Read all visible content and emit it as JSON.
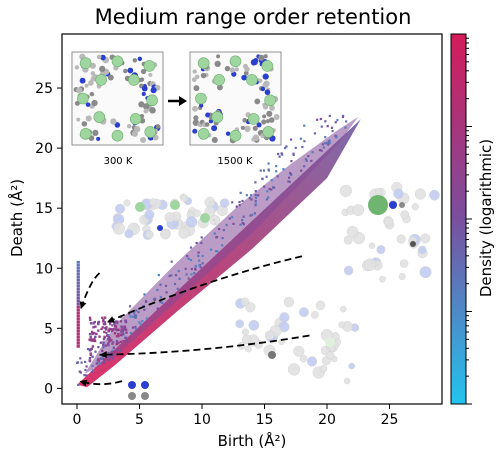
{
  "chart_data": {
    "type": "scatter",
    "title": "Medium range order retention",
    "xlabel": "Birth (Å²)",
    "ylabel": "Death (Å²)",
    "xlim": [
      -1.2,
      29.2
    ],
    "ylim": [
      -1.3,
      29.5
    ],
    "xticks": [
      0,
      5,
      10,
      15,
      20,
      25
    ],
    "yticks": [
      0,
      5,
      10,
      15,
      20,
      25
    ],
    "colorbar": {
      "label": "Density (logarithmic)",
      "scale": "log",
      "color_low": "#22c4ef",
      "color_mid": "#7a4f9e",
      "color_high": "#d41c5a"
    },
    "grid": false,
    "legend": "none",
    "insets": [
      {
        "label": "300 K"
      },
      {
        "label": "1500 K"
      }
    ],
    "density_regions": [
      {
        "name": "diagonal band",
        "birth_range": [
          0,
          23
        ],
        "death_range": [
          0.3,
          22.7
        ],
        "peak_density": "high near origin"
      },
      {
        "name": "vertical strip at zero birth",
        "birth": 0.1,
        "death_range": [
          3.5,
          10.5
        ]
      },
      {
        "name": "cluster near origin",
        "birth_range": [
          1,
          4
        ],
        "death_range": [
          2,
          6
        ]
      }
    ],
    "annotation_arrows": [
      {
        "from": [
          1.8,
          9.6
        ],
        "to": [
          0.3,
          6.6
        ]
      },
      {
        "from": [
          18,
          11
        ],
        "to": [
          2.4,
          5.5
        ]
      },
      {
        "from": [
          18.6,
          4.4
        ],
        "to": [
          1.8,
          2.8
        ]
      },
      {
        "from": [
          3.6,
          0.6
        ],
        "to": [
          0.2,
          0.6
        ]
      }
    ]
  }
}
